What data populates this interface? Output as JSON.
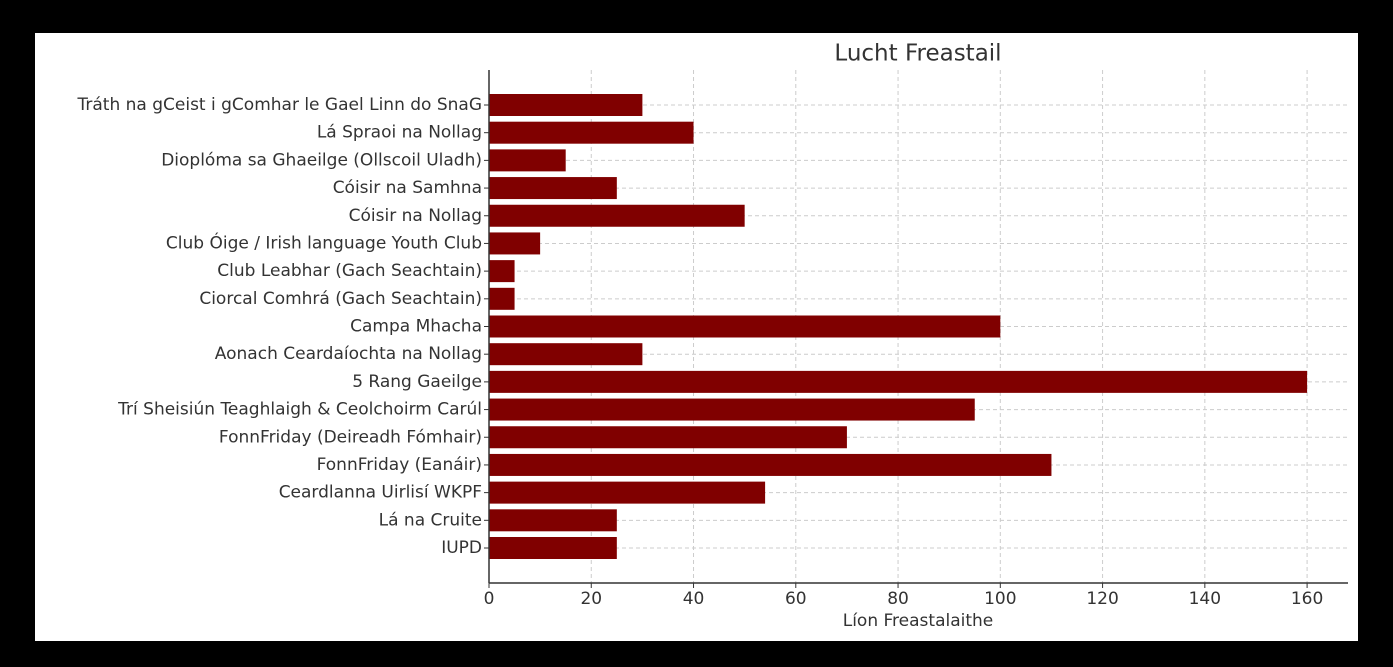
{
  "chart_data": {
    "type": "barh",
    "title": "Lucht Freastail",
    "xlabel": "Líon Freastalaithe",
    "categories": [
      "Tráth na gCeist i gComhar le Gael Linn do SnaG",
      "Lá Spraoi na Nollag",
      "Dioplóma sa Ghaeilge (Ollscoil Uladh)",
      "Cóisir na Samhna",
      "Cóisir na Nollag",
      "Club Óige / Irish language Youth Club",
      "Club Leabhar (Gach Seachtain)",
      "Ciorcal Comhrá (Gach Seachtain)",
      "Campa Mhacha",
      "Aonach Ceardaíochta na Nollag",
      "5 Rang Gaeilge",
      "Trí Sheisiún Teaghlaigh & Ceolchoirm Carúl",
      "FonnFriday (Deireadh Fómhair)",
      "FonnFriday (Eanáir)",
      "Ceardlanna Uirlisí WKPF",
      "Lá na Cruite",
      "IUPD"
    ],
    "values": [
      30,
      40,
      15,
      25,
      50,
      10,
      5,
      5,
      100,
      30,
      160,
      95,
      70,
      110,
      54,
      25,
      25
    ],
    "color": "#800000",
    "xlim": [
      0,
      168
    ],
    "xticks": [
      0,
      20,
      40,
      60,
      80,
      100,
      120,
      140,
      160
    ],
    "grid": true
  }
}
